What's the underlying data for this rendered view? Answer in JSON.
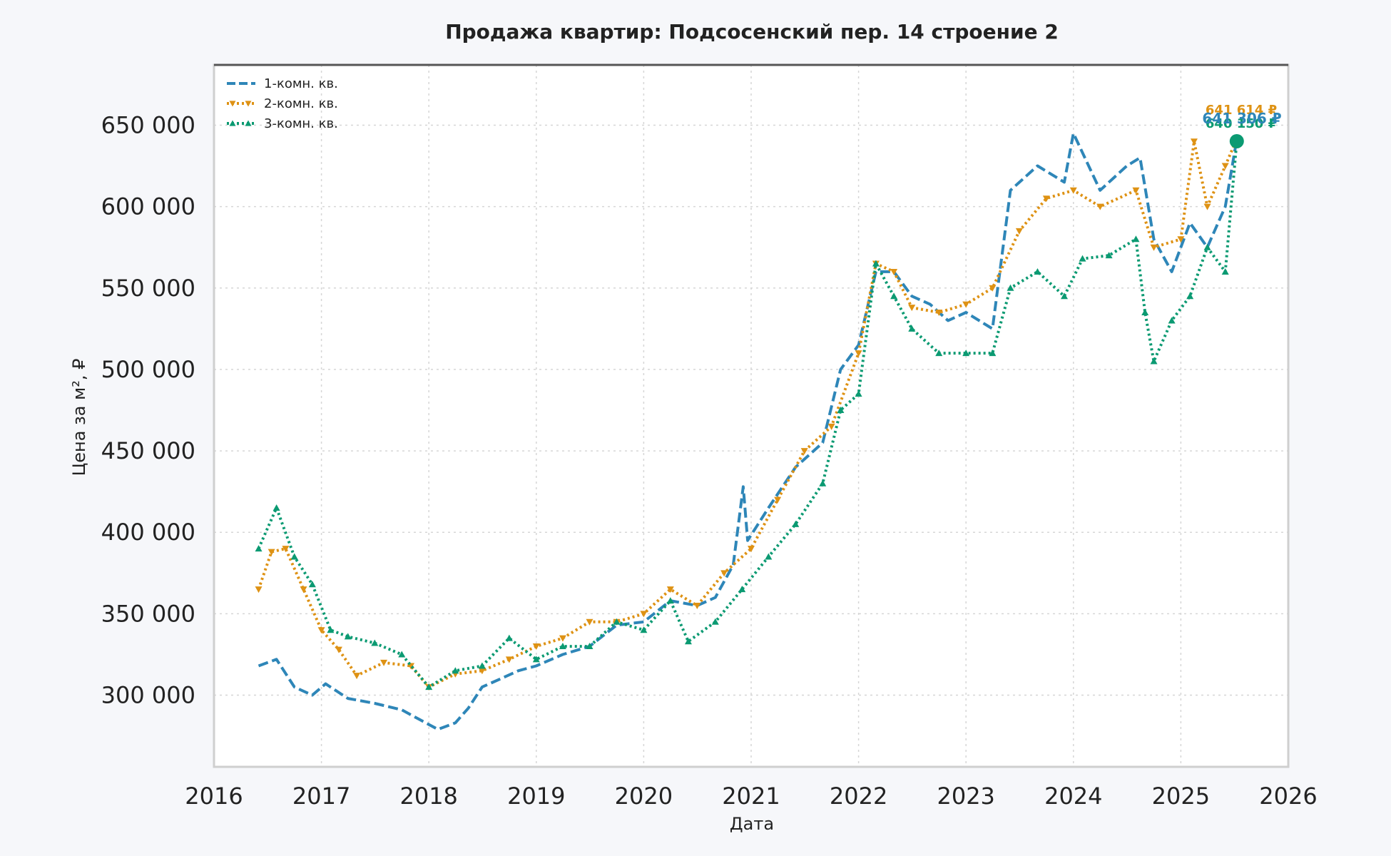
{
  "colors": {
    "series1": "#2e86b8",
    "series2": "#de9214",
    "series3": "#0b9a72",
    "grid": "#d6d6d6",
    "frame": "#cfcfcf",
    "top_frame": "#555555",
    "text": "#222222"
  },
  "chart_data": {
    "type": "line",
    "title": "Продажа квартир: Подсосенский пер. 14 строение 2",
    "xlabel": "Дата",
    "ylabel": "Цена за м², ₽",
    "xlim": [
      "2016-01-01",
      "2026-01-01"
    ],
    "ylim": [
      256000,
      687000
    ],
    "x_ticks": [
      "2016",
      "2017",
      "2018",
      "2019",
      "2020",
      "2021",
      "2022",
      "2023",
      "2024",
      "2025",
      "2026"
    ],
    "y_ticks": [
      "300 000",
      "350 000",
      "400 000",
      "450 000",
      "500 000",
      "550 000",
      "600 000",
      "650 000"
    ],
    "y_tick_values": [
      300000,
      350000,
      400000,
      450000,
      500000,
      550000,
      600000,
      650000
    ],
    "grid": true,
    "legend_position": "top-left",
    "series": [
      {
        "name": "1-комн. кв.",
        "style": "dashed",
        "end_label": "641 306 ₽",
        "points": [
          [
            "2016-06-01",
            318000
          ],
          [
            "2016-08-01",
            322000
          ],
          [
            "2016-10-01",
            305000
          ],
          [
            "2016-12-01",
            300000
          ],
          [
            "2017-01-15",
            307000
          ],
          [
            "2017-04-01",
            298000
          ],
          [
            "2017-07-01",
            295000
          ],
          [
            "2017-10-01",
            291000
          ],
          [
            "2017-12-01",
            285000
          ],
          [
            "2018-02-01",
            279000
          ],
          [
            "2018-04-01",
            283000
          ],
          [
            "2018-05-15",
            292000
          ],
          [
            "2018-07-01",
            305000
          ],
          [
            "2018-09-01",
            310000
          ],
          [
            "2018-11-01",
            315000
          ],
          [
            "2019-01-01",
            318000
          ],
          [
            "2019-04-01",
            325000
          ],
          [
            "2019-07-01",
            330000
          ],
          [
            "2019-10-01",
            343000
          ],
          [
            "2020-01-01",
            345000
          ],
          [
            "2020-04-01",
            358000
          ],
          [
            "2020-07-01",
            355000
          ],
          [
            "2020-09-01",
            360000
          ],
          [
            "2020-11-01",
            380000
          ],
          [
            "2020-12-05",
            428000
          ],
          [
            "2020-12-20",
            395000
          ],
          [
            "2021-03-01",
            415000
          ],
          [
            "2021-06-01",
            440000
          ],
          [
            "2021-09-01",
            455000
          ],
          [
            "2021-11-01",
            500000
          ],
          [
            "2022-01-01",
            515000
          ],
          [
            "2022-03-01",
            560000
          ],
          [
            "2022-05-01",
            560000
          ],
          [
            "2022-07-01",
            545000
          ],
          [
            "2022-09-01",
            540000
          ],
          [
            "2022-11-01",
            530000
          ],
          [
            "2023-01-01",
            535000
          ],
          [
            "2023-04-01",
            525000
          ],
          [
            "2023-06-01",
            610000
          ],
          [
            "2023-09-01",
            625000
          ],
          [
            "2023-12-01",
            615000
          ],
          [
            "2024-01-01",
            645000
          ],
          [
            "2024-04-01",
            610000
          ],
          [
            "2024-07-01",
            625000
          ],
          [
            "2024-08-15",
            630000
          ],
          [
            "2024-10-01",
            580000
          ],
          [
            "2024-12-01",
            560000
          ],
          [
            "2025-02-01",
            590000
          ],
          [
            "2025-04-01",
            575000
          ],
          [
            "2025-06-01",
            600000
          ],
          [
            "2025-07-10",
            641306
          ]
        ]
      },
      {
        "name": "2-комн. кв.",
        "style": "dotted-triangle-down",
        "end_label": "641 614 ₽",
        "points": [
          [
            "2016-06-01",
            365000
          ],
          [
            "2016-07-15",
            388000
          ],
          [
            "2016-09-01",
            390000
          ],
          [
            "2016-11-01",
            365000
          ],
          [
            "2017-01-01",
            340000
          ],
          [
            "2017-03-01",
            328000
          ],
          [
            "2017-05-01",
            312000
          ],
          [
            "2017-08-01",
            320000
          ],
          [
            "2017-11-01",
            318000
          ],
          [
            "2018-01-01",
            305000
          ],
          [
            "2018-04-01",
            313000
          ],
          [
            "2018-07-01",
            315000
          ],
          [
            "2018-10-01",
            322000
          ],
          [
            "2019-01-01",
            330000
          ],
          [
            "2019-04-01",
            335000
          ],
          [
            "2019-07-01",
            345000
          ],
          [
            "2019-10-01",
            345000
          ],
          [
            "2020-01-01",
            350000
          ],
          [
            "2020-04-01",
            365000
          ],
          [
            "2020-07-01",
            355000
          ],
          [
            "2020-10-01",
            375000
          ],
          [
            "2021-01-01",
            390000
          ],
          [
            "2021-04-01",
            420000
          ],
          [
            "2021-07-01",
            450000
          ],
          [
            "2021-10-01",
            465000
          ],
          [
            "2022-01-01",
            510000
          ],
          [
            "2022-03-01",
            565000
          ],
          [
            "2022-05-01",
            560000
          ],
          [
            "2022-07-01",
            538000
          ],
          [
            "2022-10-01",
            535000
          ],
          [
            "2023-01-01",
            540000
          ],
          [
            "2023-04-01",
            550000
          ],
          [
            "2023-07-01",
            585000
          ],
          [
            "2023-10-01",
            605000
          ],
          [
            "2024-01-01",
            610000
          ],
          [
            "2024-04-01",
            600000
          ],
          [
            "2024-08-01",
            610000
          ],
          [
            "2024-10-01",
            575000
          ],
          [
            "2025-01-01",
            580000
          ],
          [
            "2025-02-15",
            640000
          ],
          [
            "2025-04-01",
            600000
          ],
          [
            "2025-06-01",
            625000
          ],
          [
            "2025-07-10",
            641614
          ]
        ]
      },
      {
        "name": "3-комн. кв.",
        "style": "dotted-triangle-up",
        "end_label": "640 150 ₽",
        "points": [
          [
            "2016-06-01",
            390000
          ],
          [
            "2016-08-01",
            415000
          ],
          [
            "2016-10-01",
            385000
          ],
          [
            "2016-12-01",
            368000
          ],
          [
            "2017-02-01",
            340000
          ],
          [
            "2017-04-01",
            336000
          ],
          [
            "2017-07-01",
            332000
          ],
          [
            "2017-10-01",
            325000
          ],
          [
            "2018-01-01",
            305000
          ],
          [
            "2018-04-01",
            315000
          ],
          [
            "2018-07-01",
            318000
          ],
          [
            "2018-10-01",
            335000
          ],
          [
            "2019-01-01",
            322000
          ],
          [
            "2019-04-01",
            330000
          ],
          [
            "2019-07-01",
            330000
          ],
          [
            "2019-10-01",
            345000
          ],
          [
            "2020-01-01",
            340000
          ],
          [
            "2020-04-01",
            358000
          ],
          [
            "2020-06-01",
            333000
          ],
          [
            "2020-09-01",
            345000
          ],
          [
            "2020-12-01",
            365000
          ],
          [
            "2021-03-01",
            385000
          ],
          [
            "2021-06-01",
            405000
          ],
          [
            "2021-09-01",
            430000
          ],
          [
            "2021-11-01",
            475000
          ],
          [
            "2022-01-01",
            485000
          ],
          [
            "2022-03-01",
            565000
          ],
          [
            "2022-05-01",
            545000
          ],
          [
            "2022-07-01",
            525000
          ],
          [
            "2022-10-01",
            510000
          ],
          [
            "2023-01-01",
            510000
          ],
          [
            "2023-04-01",
            510000
          ],
          [
            "2023-06-01",
            550000
          ],
          [
            "2023-09-01",
            560000
          ],
          [
            "2023-12-01",
            545000
          ],
          [
            "2024-02-01",
            568000
          ],
          [
            "2024-05-01",
            570000
          ],
          [
            "2024-08-01",
            580000
          ],
          [
            "2024-09-01",
            535000
          ],
          [
            "2024-10-01",
            505000
          ],
          [
            "2024-12-01",
            530000
          ],
          [
            "2025-02-01",
            545000
          ],
          [
            "2025-04-01",
            575000
          ],
          [
            "2025-06-01",
            560000
          ],
          [
            "2025-07-10",
            640150
          ]
        ]
      }
    ]
  }
}
